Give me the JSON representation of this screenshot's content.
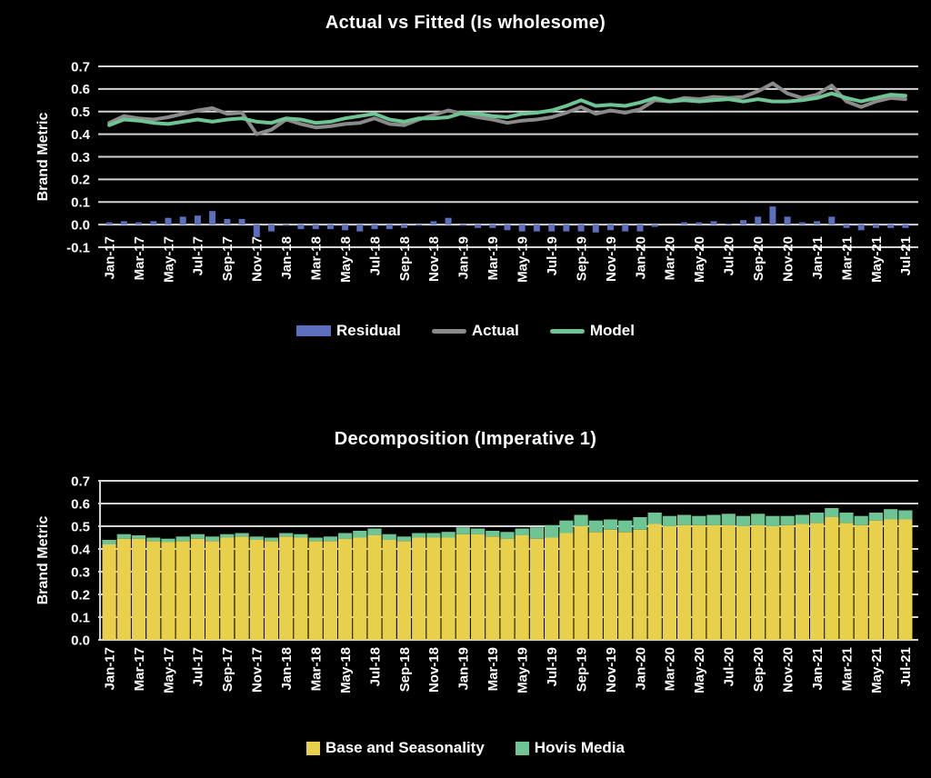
{
  "page": {
    "background": "#000000",
    "text_color": "#ffffff"
  },
  "chart_data": [
    {
      "type": "line",
      "title": "Actual vs Fitted (Is wholesome)",
      "ylabel": "Brand Metric",
      "ylim": [
        -0.1,
        0.7
      ],
      "ytick_step": 0.1,
      "grid": true,
      "grid_color": "#d4d4d4",
      "text_color": "#ffffff",
      "legend_position": "bottom",
      "xtick_every": 2,
      "x": [
        "Jan-17",
        "Feb-17",
        "Mar-17",
        "Apr-17",
        "May-17",
        "Jun-17",
        "Jul-17",
        "Aug-17",
        "Sep-17",
        "Oct-17",
        "Nov-17",
        "Dec-17",
        "Jan-18",
        "Feb-18",
        "Mar-18",
        "Apr-18",
        "May-18",
        "Jun-18",
        "Jul-18",
        "Aug-18",
        "Sep-18",
        "Oct-18",
        "Nov-18",
        "Dec-18",
        "Jan-19",
        "Feb-19",
        "Mar-19",
        "Apr-19",
        "May-19",
        "Jun-19",
        "Jul-19",
        "Aug-19",
        "Sep-19",
        "Oct-19",
        "Nov-19",
        "Dec-19",
        "Jan-20",
        "Feb-20",
        "Mar-20",
        "Apr-20",
        "May-20",
        "Jun-20",
        "Jul-20",
        "Aug-20",
        "Sep-20",
        "Oct-20",
        "Nov-20",
        "Dec-20",
        "Jan-21",
        "Feb-21",
        "Mar-21",
        "Apr-21",
        "May-21",
        "Jun-21",
        "Jul-21"
      ],
      "series": [
        {
          "name": "Residual",
          "type": "bar",
          "color": "#5b6fbd",
          "values": [
            0.01,
            0.015,
            0.01,
            0.015,
            0.03,
            0.035,
            0.04,
            0.06,
            0.025,
            0.025,
            -0.055,
            -0.03,
            -0.005,
            -0.02,
            -0.02,
            -0.02,
            -0.025,
            -0.03,
            -0.02,
            -0.02,
            -0.015,
            -0.005,
            0.015,
            0.03,
            -0.005,
            -0.015,
            -0.015,
            -0.025,
            -0.03,
            -0.03,
            -0.03,
            -0.03,
            -0.03,
            -0.035,
            -0.025,
            -0.03,
            -0.03,
            -0.01,
            0.0,
            0.01,
            0.01,
            0.015,
            0.005,
            0.02,
            0.035,
            0.08,
            0.035,
            0.01,
            0.015,
            0.035,
            -0.015,
            -0.025,
            -0.015,
            -0.015,
            -0.015
          ]
        },
        {
          "name": "Actual",
          "type": "line",
          "color": "#8a8a8a",
          "values": [
            0.45,
            0.48,
            0.47,
            0.465,
            0.475,
            0.49,
            0.505,
            0.515,
            0.49,
            0.495,
            0.4,
            0.42,
            0.465,
            0.445,
            0.43,
            0.435,
            0.445,
            0.45,
            0.47,
            0.445,
            0.44,
            0.465,
            0.485,
            0.505,
            0.49,
            0.475,
            0.465,
            0.45,
            0.46,
            0.465,
            0.475,
            0.495,
            0.52,
            0.49,
            0.505,
            0.495,
            0.51,
            0.55,
            0.545,
            0.56,
            0.555,
            0.565,
            0.56,
            0.565,
            0.59,
            0.625,
            0.58,
            0.56,
            0.575,
            0.615,
            0.545,
            0.52,
            0.545,
            0.56,
            0.555
          ]
        },
        {
          "name": "Model",
          "type": "line",
          "color": "#6ec493",
          "values": [
            0.44,
            0.465,
            0.46,
            0.45,
            0.445,
            0.455,
            0.465,
            0.455,
            0.465,
            0.47,
            0.455,
            0.45,
            0.47,
            0.465,
            0.45,
            0.455,
            0.47,
            0.48,
            0.49,
            0.465,
            0.455,
            0.47,
            0.47,
            0.475,
            0.495,
            0.49,
            0.48,
            0.475,
            0.49,
            0.495,
            0.505,
            0.525,
            0.55,
            0.525,
            0.53,
            0.525,
            0.54,
            0.56,
            0.545,
            0.55,
            0.545,
            0.55,
            0.555,
            0.545,
            0.555,
            0.545,
            0.545,
            0.55,
            0.56,
            0.58,
            0.56,
            0.545,
            0.56,
            0.575,
            0.57
          ]
        }
      ]
    },
    {
      "type": "bar",
      "stacked": true,
      "title": "Decomposition (Imperative 1)",
      "ylabel": "Brand Metric",
      "ylim": [
        0,
        0.7
      ],
      "ytick_step": 0.1,
      "grid": true,
      "grid_color": "#d4d4d4",
      "text_color": "#ffffff",
      "legend_position": "bottom",
      "xtick_every": 2,
      "x": [
        "Jan-17",
        "Feb-17",
        "Mar-17",
        "Apr-17",
        "May-17",
        "Jun-17",
        "Jul-17",
        "Aug-17",
        "Sep-17",
        "Oct-17",
        "Nov-17",
        "Dec-17",
        "Jan-18",
        "Feb-18",
        "Mar-18",
        "Apr-18",
        "May-18",
        "Jun-18",
        "Jul-18",
        "Aug-18",
        "Sep-18",
        "Oct-18",
        "Nov-18",
        "Dec-18",
        "Jan-19",
        "Feb-19",
        "Mar-19",
        "Apr-19",
        "May-19",
        "Jun-19",
        "Jul-19",
        "Aug-19",
        "Sep-19",
        "Oct-19",
        "Nov-19",
        "Dec-19",
        "Jan-20",
        "Feb-20",
        "Mar-20",
        "Apr-20",
        "May-20",
        "Jun-20",
        "Jul-20",
        "Aug-20",
        "Sep-20",
        "Oct-20",
        "Nov-20",
        "Dec-20",
        "Jan-21",
        "Feb-21",
        "Mar-21",
        "Apr-21",
        "May-21",
        "Jun-21",
        "Jul-21"
      ],
      "series": [
        {
          "name": "Base and Seasonality",
          "color": "#e8d04c",
          "values": [
            0.42,
            0.445,
            0.445,
            0.435,
            0.43,
            0.435,
            0.445,
            0.435,
            0.45,
            0.455,
            0.44,
            0.435,
            0.455,
            0.45,
            0.435,
            0.435,
            0.445,
            0.45,
            0.46,
            0.44,
            0.435,
            0.45,
            0.45,
            0.45,
            0.465,
            0.465,
            0.455,
            0.445,
            0.46,
            0.445,
            0.45,
            0.47,
            0.5,
            0.475,
            0.485,
            0.475,
            0.485,
            0.51,
            0.5,
            0.505,
            0.505,
            0.505,
            0.505,
            0.5,
            0.505,
            0.5,
            0.505,
            0.51,
            0.515,
            0.54,
            0.515,
            0.505,
            0.525,
            0.53,
            0.53
          ]
        },
        {
          "name": "Hovis Media",
          "color": "#6ec493",
          "values": [
            0.02,
            0.02,
            0.015,
            0.015,
            0.015,
            0.02,
            0.02,
            0.02,
            0.015,
            0.015,
            0.015,
            0.015,
            0.015,
            0.015,
            0.015,
            0.02,
            0.025,
            0.03,
            0.03,
            0.025,
            0.02,
            0.02,
            0.02,
            0.025,
            0.03,
            0.025,
            0.025,
            0.03,
            0.03,
            0.05,
            0.055,
            0.055,
            0.05,
            0.05,
            0.045,
            0.05,
            0.055,
            0.05,
            0.045,
            0.045,
            0.04,
            0.045,
            0.05,
            0.045,
            0.05,
            0.045,
            0.04,
            0.04,
            0.045,
            0.04,
            0.045,
            0.04,
            0.035,
            0.045,
            0.04
          ]
        }
      ]
    }
  ]
}
